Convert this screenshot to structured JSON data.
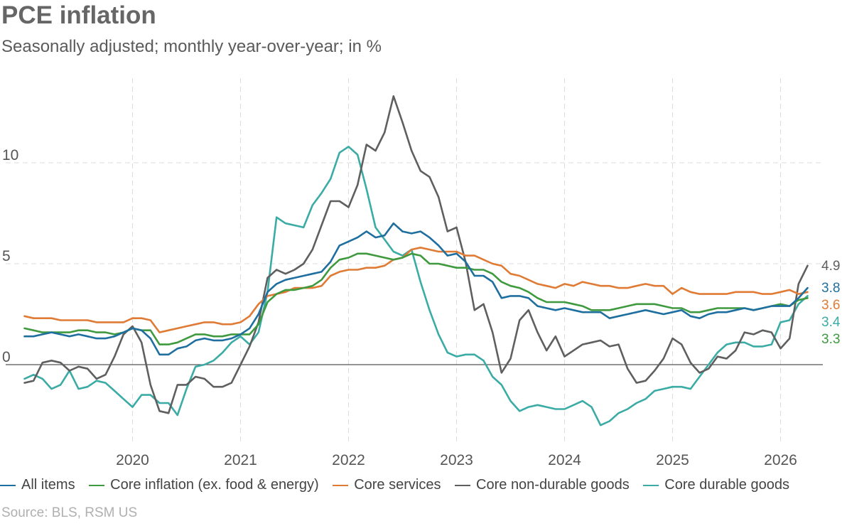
{
  "chart_data": {
    "type": "line",
    "title": "PCE inflation",
    "subtitle": "Seasonally adjusted; monthly year-over-year; in %",
    "source": "Source: BLS, RSM US",
    "x_start": "2019-01",
    "x_ticks": [
      "2020",
      "2021",
      "2022",
      "2023",
      "2024",
      "2025",
      "2026"
    ],
    "y_ticks": [
      "0",
      "5",
      "10"
    ],
    "ylim": [
      -4,
      14
    ],
    "grid": true,
    "legend_position": "bottom",
    "series": [
      {
        "name": "All items",
        "color": "#1e6f9f",
        "end_label": "3.8",
        "values": [
          1.4,
          1.4,
          1.5,
          1.6,
          1.5,
          1.4,
          1.5,
          1.4,
          1.3,
          1.3,
          1.4,
          1.6,
          1.8,
          1.7,
          1.3,
          0.5,
          0.5,
          0.8,
          0.9,
          1.2,
          1.3,
          1.2,
          1.2,
          1.3,
          1.5,
          1.8,
          2.5,
          3.6,
          4.0,
          4.2,
          4.3,
          4.4,
          4.5,
          4.6,
          5.1,
          5.9,
          6.1,
          6.3,
          6.6,
          6.3,
          6.4,
          7.0,
          6.6,
          6.5,
          6.6,
          6.3,
          5.9,
          5.4,
          5.5,
          5.1,
          4.4,
          4.4,
          4.1,
          3.3,
          3.4,
          3.4,
          3.3,
          2.9,
          2.8,
          2.7,
          2.8,
          2.7,
          2.6,
          2.6,
          2.6,
          2.3,
          2.4,
          2.5,
          2.6,
          2.7,
          2.6,
          2.5,
          2.6,
          2.7,
          2.4,
          2.3,
          2.5,
          2.6,
          2.6,
          2.7,
          2.8,
          2.7,
          2.8,
          2.9,
          2.9,
          2.9,
          3.3,
          3.8
        ]
      },
      {
        "name": "Core inflation (ex. food & energy)",
        "color": "#3f9a3f",
        "end_label": "3.3",
        "values": [
          1.8,
          1.7,
          1.6,
          1.6,
          1.6,
          1.6,
          1.7,
          1.7,
          1.6,
          1.6,
          1.5,
          1.6,
          1.8,
          1.7,
          1.7,
          1.0,
          1.0,
          1.1,
          1.3,
          1.5,
          1.5,
          1.4,
          1.4,
          1.5,
          1.5,
          1.5,
          2.0,
          3.1,
          3.5,
          3.7,
          3.7,
          3.8,
          3.9,
          4.2,
          4.8,
          5.2,
          5.3,
          5.5,
          5.5,
          5.4,
          5.3,
          5.2,
          5.3,
          5.5,
          5.4,
          5.0,
          5.0,
          4.9,
          4.8,
          4.8,
          4.7,
          4.7,
          4.5,
          4.1,
          3.9,
          3.8,
          3.6,
          3.3,
          3.1,
          3.1,
          3.1,
          3.0,
          2.9,
          2.7,
          2.7,
          2.7,
          2.8,
          2.9,
          3.0,
          3.0,
          3.0,
          2.9,
          2.8,
          2.8,
          2.6,
          2.6,
          2.7,
          2.8,
          2.8,
          2.8,
          2.8,
          2.7,
          2.8,
          2.9,
          3.0,
          2.9,
          3.2,
          3.3
        ]
      },
      {
        "name": "Core services",
        "color": "#e07b35",
        "end_label": "3.6",
        "values": [
          2.4,
          2.3,
          2.3,
          2.3,
          2.2,
          2.2,
          2.2,
          2.2,
          2.1,
          2.1,
          2.1,
          2.1,
          2.3,
          2.3,
          2.2,
          1.6,
          1.7,
          1.8,
          1.9,
          2.0,
          2.1,
          2.1,
          2.0,
          2.0,
          2.1,
          2.4,
          3.0,
          3.4,
          3.5,
          3.6,
          3.8,
          3.8,
          3.8,
          3.9,
          4.4,
          4.6,
          4.7,
          4.7,
          4.8,
          4.8,
          4.9,
          5.2,
          5.3,
          5.7,
          5.8,
          5.7,
          5.6,
          5.6,
          5.6,
          5.4,
          5.4,
          5.2,
          5.0,
          4.9,
          4.5,
          4.4,
          4.2,
          4.0,
          3.9,
          3.8,
          4.0,
          3.9,
          4.1,
          4.0,
          3.9,
          3.9,
          3.8,
          3.8,
          3.9,
          4.0,
          3.9,
          3.9,
          3.5,
          3.8,
          3.6,
          3.5,
          3.5,
          3.5,
          3.5,
          3.6,
          3.6,
          3.6,
          3.5,
          3.5,
          3.6,
          3.7,
          3.5,
          3.6
        ]
      },
      {
        "name": "Core non-durable goods",
        "color": "#5f5f5f",
        "end_label": "4.9",
        "values": [
          -0.9,
          -0.8,
          0.1,
          0.2,
          0.1,
          -0.3,
          -0.1,
          -0.2,
          -0.7,
          -0.5,
          0.4,
          1.5,
          1.9,
          1.1,
          -1.0,
          -2.3,
          -2.4,
          -1.0,
          -1.0,
          -0.6,
          -0.7,
          -1.1,
          -1.1,
          -0.9,
          0.0,
          0.9,
          2.1,
          4.3,
          4.7,
          4.5,
          4.7,
          5.0,
          5.7,
          6.9,
          8.1,
          8.1,
          7.8,
          8.9,
          10.9,
          10.6,
          11.5,
          13.3,
          12.0,
          10.6,
          9.6,
          9.3,
          8.3,
          6.6,
          6.8,
          5.1,
          2.7,
          3.0,
          1.6,
          -0.4,
          0.3,
          2.2,
          2.7,
          1.6,
          0.7,
          1.4,
          0.4,
          0.7,
          1.0,
          1.1,
          1.2,
          0.9,
          1.0,
          -0.2,
          -0.9,
          -0.8,
          -0.3,
          0.3,
          1.3,
          1.0,
          0.1,
          -0.4,
          -0.2,
          0.4,
          0.3,
          0.7,
          1.6,
          1.5,
          1.7,
          1.6,
          0.8,
          1.3,
          4.0,
          4.9
        ]
      },
      {
        "name": "Core durable goods",
        "color": "#3aaba5",
        "end_label": "3.4",
        "values": [
          -0.7,
          -0.5,
          -0.7,
          -1.2,
          -1.0,
          -0.3,
          -1.2,
          -1.1,
          -0.8,
          -0.9,
          -1.3,
          -1.7,
          -2.1,
          -1.5,
          -1.5,
          -1.9,
          -1.9,
          -2.5,
          -1.2,
          -0.1,
          0.0,
          0.2,
          0.6,
          1.1,
          1.4,
          1.0,
          1.6,
          3.6,
          7.3,
          7.0,
          6.9,
          6.8,
          7.9,
          8.5,
          9.2,
          10.5,
          10.8,
          10.4,
          8.7,
          6.8,
          6.2,
          5.6,
          5.4,
          5.7,
          4.1,
          2.7,
          1.5,
          0.6,
          0.4,
          0.5,
          0.5,
          0.2,
          -0.6,
          -1.0,
          -1.8,
          -2.3,
          -2.1,
          -2.0,
          -2.1,
          -2.2,
          -2.2,
          -2.0,
          -1.8,
          -2.1,
          -3.0,
          -2.8,
          -2.4,
          -2.2,
          -1.9,
          -1.7,
          -1.3,
          -1.2,
          -1.1,
          -1.1,
          -1.2,
          -0.6,
          0.0,
          0.6,
          1.0,
          1.1,
          1.1,
          0.9,
          0.9,
          1.0,
          2.1,
          2.2,
          3.0,
          3.4
        ]
      }
    ]
  }
}
